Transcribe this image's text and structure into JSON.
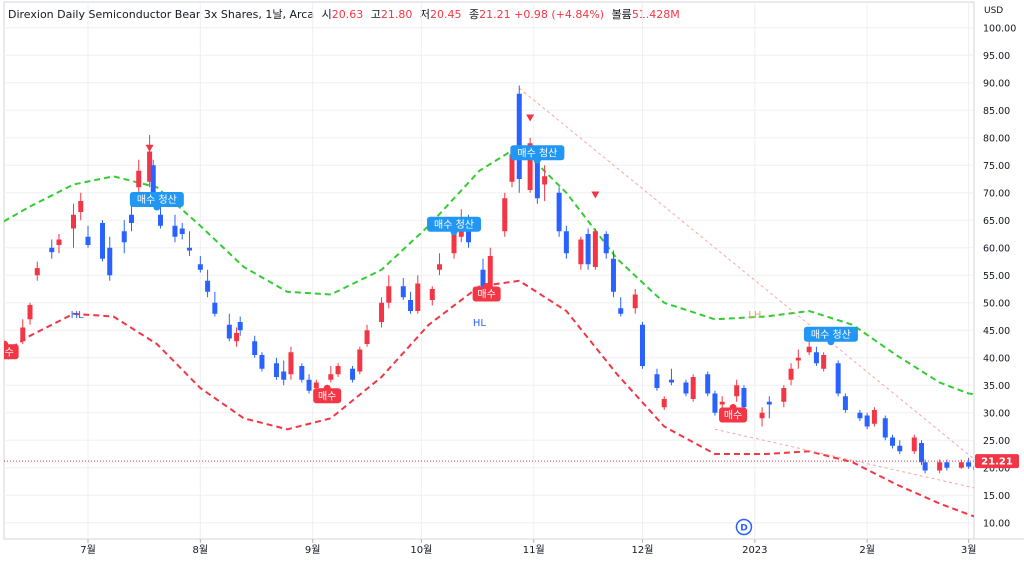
{
  "header": {
    "name": "Direxion Daily Semiconductor Bear 3x Shares",
    "interval": "1날",
    "exchange": "Arca",
    "open_label": "시",
    "open": "20.63",
    "high_label": "고",
    "high": "21.80",
    "low_label": "저",
    "low": "20.45",
    "close_label": "종",
    "close": "21.21",
    "change": "+0.98 (+4.84%)",
    "volume_label": "볼륨",
    "volume": "51.428M"
  },
  "currency": "USD",
  "colors": {
    "up": "#f23645",
    "down": "#2962ff",
    "upper_band": "#33cc33",
    "lower_band": "#f23645",
    "buy_label": "#f23645",
    "exit_label": "#2196f3",
    "trendline": "#f7a6a6",
    "grid": "#eef0f3"
  },
  "chart_data": {
    "type": "candlestick",
    "y_ticks": [
      "10.00",
      "15.00",
      "20.00",
      "25.00",
      "30.00",
      "35.00",
      "40.00",
      "45.00",
      "50.00",
      "55.00",
      "60.00",
      "65.00",
      "70.00",
      "75.00",
      "80.00",
      "85.00",
      "90.00",
      "95.00",
      "100.00"
    ],
    "ylim": [
      8.5,
      100.5
    ],
    "x_ticks": [
      "7월",
      "8월",
      "9월",
      "10월",
      "11월",
      "12월",
      "2023",
      "2월",
      "3월"
    ],
    "last_price": "21.21",
    "candles": [
      {
        "t": "2022-06-07",
        "o": 38.5,
        "h": 40.0,
        "l": 37.6,
        "c": 39.8
      },
      {
        "t": "2022-06-09",
        "o": 40.5,
        "h": 42.0,
        "l": 39.7,
        "c": 41.5
      },
      {
        "t": "2022-06-13",
        "o": 43.0,
        "h": 47.0,
        "l": 42.5,
        "c": 45.5
      },
      {
        "t": "2022-06-15",
        "o": 47.0,
        "h": 50.0,
        "l": 46.0,
        "c": 49.6
      },
      {
        "t": "2022-06-17",
        "o": 55.0,
        "h": 57.5,
        "l": 54.0,
        "c": 56.3
      },
      {
        "t": "2022-06-21",
        "o": 60.0,
        "h": 61.5,
        "l": 58.0,
        "c": 59.2
      },
      {
        "t": "2022-06-23",
        "o": 60.5,
        "h": 62.5,
        "l": 59.0,
        "c": 61.5
      },
      {
        "t": "2022-06-27",
        "o": 63.5,
        "h": 68.0,
        "l": 60.0,
        "c": 66.0
      },
      {
        "t": "2022-06-29",
        "o": 66.5,
        "h": 70.0,
        "l": 65.0,
        "c": 68.5
      },
      {
        "t": "2022-07-01",
        "o": 62.0,
        "h": 64.0,
        "l": 60.0,
        "c": 60.5
      },
      {
        "t": "2022-07-05",
        "o": 64.5,
        "h": 65.0,
        "l": 57.5,
        "c": 58.0
      },
      {
        "t": "2022-07-07",
        "o": 60.0,
        "h": 62.0,
        "l": 54.0,
        "c": 55.0
      },
      {
        "t": "2022-07-11",
        "o": 63.0,
        "h": 65.0,
        "l": 59.0,
        "c": 61.0
      },
      {
        "t": "2022-07-13",
        "o": 66.0,
        "h": 69.0,
        "l": 63.0,
        "c": 64.5
      },
      {
        "t": "2022-07-15",
        "o": 71.0,
        "h": 76.0,
        "l": 68.5,
        "c": 74.0
      },
      {
        "t": "2022-07-18",
        "o": 72.0,
        "h": 80.5,
        "l": 71.0,
        "c": 77.5
      },
      {
        "t": "2022-07-19",
        "o": 75.0,
        "h": 76.0,
        "l": 69.0,
        "c": 70.0
      },
      {
        "t": "2022-07-21",
        "o": 66.0,
        "h": 68.0,
        "l": 63.5,
        "c": 64.0
      },
      {
        "t": "2022-07-25",
        "o": 64.0,
        "h": 66.0,
        "l": 61.0,
        "c": 62.0
      },
      {
        "t": "2022-07-27",
        "o": 63.5,
        "h": 64.5,
        "l": 61.5,
        "c": 62.5
      },
      {
        "t": "2022-07-29",
        "o": 60.0,
        "h": 63.0,
        "l": 58.5,
        "c": 59.5
      },
      {
        "t": "2022-08-01",
        "o": 57.0,
        "h": 58.5,
        "l": 55.5,
        "c": 56.0
      },
      {
        "t": "2022-08-03",
        "o": 54.0,
        "h": 56.0,
        "l": 51.0,
        "c": 52.0
      },
      {
        "t": "2022-08-05",
        "o": 50.0,
        "h": 52.0,
        "l": 47.5,
        "c": 48.0
      },
      {
        "t": "2022-08-09",
        "o": 46.0,
        "h": 48.0,
        "l": 43.0,
        "c": 43.5
      },
      {
        "t": "2022-08-11",
        "o": 43.0,
        "h": 45.5,
        "l": 42.0,
        "c": 44.5
      },
      {
        "t": "2022-08-12",
        "o": 46.5,
        "h": 47.5,
        "l": 44.0,
        "c": 45.0
      },
      {
        "t": "2022-08-16",
        "o": 43.0,
        "h": 44.0,
        "l": 40.0,
        "c": 40.5
      },
      {
        "t": "2022-08-18",
        "o": 40.5,
        "h": 41.0,
        "l": 37.5,
        "c": 38.0
      },
      {
        "t": "2022-08-22",
        "o": 39.0,
        "h": 40.0,
        "l": 36.0,
        "c": 36.5
      },
      {
        "t": "2022-08-24",
        "o": 37.5,
        "h": 39.5,
        "l": 35.0,
        "c": 36.0
      },
      {
        "t": "2022-08-26",
        "o": 37.0,
        "h": 42.0,
        "l": 36.0,
        "c": 41.0
      },
      {
        "t": "2022-08-29",
        "o": 38.5,
        "h": 39.0,
        "l": 35.5,
        "c": 36.0
      },
      {
        "t": "2022-08-31",
        "o": 36.0,
        "h": 37.0,
        "l": 33.5,
        "c": 34.0
      },
      {
        "t": "2022-09-02",
        "o": 34.5,
        "h": 36.0,
        "l": 33.5,
        "c": 35.5
      },
      {
        "t": "2022-09-06",
        "o": 36.0,
        "h": 38.5,
        "l": 35.5,
        "c": 37.0
      },
      {
        "t": "2022-09-08",
        "o": 37.0,
        "h": 39.0,
        "l": 36.5,
        "c": 38.5
      },
      {
        "t": "2022-09-12",
        "o": 38.0,
        "h": 38.5,
        "l": 35.5,
        "c": 36.0
      },
      {
        "t": "2022-09-14",
        "o": 37.5,
        "h": 42.0,
        "l": 37.0,
        "c": 41.5
      },
      {
        "t": "2022-09-16",
        "o": 42.5,
        "h": 46.0,
        "l": 42.0,
        "c": 45.0
      },
      {
        "t": "2022-09-20",
        "o": 46.5,
        "h": 51.0,
        "l": 45.5,
        "c": 50.0
      },
      {
        "t": "2022-09-22",
        "o": 50.0,
        "h": 55.0,
        "l": 49.0,
        "c": 53.0
      },
      {
        "t": "2022-09-26",
        "o": 53.0,
        "h": 54.5,
        "l": 50.5,
        "c": 51.0
      },
      {
        "t": "2022-09-28",
        "o": 50.5,
        "h": 52.0,
        "l": 48.0,
        "c": 48.5
      },
      {
        "t": "2022-09-30",
        "o": 48.5,
        "h": 55.0,
        "l": 48.0,
        "c": 53.5
      },
      {
        "t": "2022-10-04",
        "o": 50.5,
        "h": 53.0,
        "l": 49.5,
        "c": 52.5
      },
      {
        "t": "2022-10-06",
        "o": 56.0,
        "h": 59.0,
        "l": 55.0,
        "c": 57.0
      },
      {
        "t": "2022-10-10",
        "o": 59.0,
        "h": 63.5,
        "l": 58.0,
        "c": 62.5
      },
      {
        "t": "2022-10-12",
        "o": 62.0,
        "h": 67.0,
        "l": 61.0,
        "c": 65.0
      },
      {
        "t": "2022-10-14",
        "o": 64.0,
        "h": 66.0,
        "l": 60.0,
        "c": 61.0
      },
      {
        "t": "2022-10-18",
        "o": 56.0,
        "h": 58.0,
        "l": 51.0,
        "c": 52.0
      },
      {
        "t": "2022-10-20",
        "o": 52.0,
        "h": 60.0,
        "l": 51.5,
        "c": 58.5
      },
      {
        "t": "2022-10-24",
        "o": 63.0,
        "h": 70.0,
        "l": 62.0,
        "c": 69.0
      },
      {
        "t": "2022-10-26",
        "o": 72.0,
        "h": 78.5,
        "l": 71.0,
        "c": 77.0
      },
      {
        "t": "2022-10-28",
        "o": 88.0,
        "h": 89.5,
        "l": 70.0,
        "c": 72.5
      },
      {
        "t": "2022-10-31",
        "o": 70.5,
        "h": 80.0,
        "l": 70.0,
        "c": 79.0
      },
      {
        "t": "2022-11-02",
        "o": 76.0,
        "h": 77.5,
        "l": 68.0,
        "c": 69.0
      },
      {
        "t": "2022-11-04",
        "o": 71.5,
        "h": 75.0,
        "l": 68.5,
        "c": 73.0
      },
      {
        "t": "2022-11-08",
        "o": 70.0,
        "h": 71.0,
        "l": 62.0,
        "c": 63.0
      },
      {
        "t": "2022-11-10",
        "o": 63.0,
        "h": 64.0,
        "l": 58.0,
        "c": 59.0
      },
      {
        "t": "2022-11-14",
        "o": 57.0,
        "h": 62.0,
        "l": 56.0,
        "c": 61.5
      },
      {
        "t": "2022-11-16",
        "o": 62.5,
        "h": 63.5,
        "l": 56.0,
        "c": 57.0
      },
      {
        "t": "2022-11-18",
        "o": 56.5,
        "h": 63.5,
        "l": 56.0,
        "c": 63.0
      },
      {
        "t": "2022-11-21",
        "o": 62.5,
        "h": 63.0,
        "l": 58.0,
        "c": 59.0
      },
      {
        "t": "2022-11-23",
        "o": 58.0,
        "h": 59.5,
        "l": 51.0,
        "c": 52.0
      },
      {
        "t": "2022-11-25",
        "o": 49.0,
        "h": 51.0,
        "l": 47.5,
        "c": 48.0
      },
      {
        "t": "2022-11-29",
        "o": 49.0,
        "h": 52.5,
        "l": 48.0,
        "c": 51.5
      },
      {
        "t": "2022-12-01",
        "o": 46.0,
        "h": 46.5,
        "l": 38.0,
        "c": 38.5
      },
      {
        "t": "2022-12-05",
        "o": 37.0,
        "h": 38.0,
        "l": 34.0,
        "c": 34.5
      },
      {
        "t": "2022-12-07",
        "o": 31.0,
        "h": 33.0,
        "l": 30.5,
        "c": 32.5
      },
      {
        "t": "2022-12-09",
        "o": 36.0,
        "h": 38.0,
        "l": 35.0,
        "c": 35.5
      },
      {
        "t": "2022-12-13",
        "o": 35.5,
        "h": 36.0,
        "l": 33.0,
        "c": 33.5
      },
      {
        "t": "2022-12-15",
        "o": 32.5,
        "h": 37.0,
        "l": 32.0,
        "c": 36.5
      },
      {
        "t": "2022-12-19",
        "o": 37.0,
        "h": 37.5,
        "l": 33.0,
        "c": 33.5
      },
      {
        "t": "2022-12-21",
        "o": 33.5,
        "h": 34.0,
        "l": 29.5,
        "c": 30.0
      },
      {
        "t": "2022-12-23",
        "o": 31.5,
        "h": 33.0,
        "l": 30.0,
        "c": 32.0
      },
      {
        "t": "2022-12-27",
        "o": 33.0,
        "h": 36.0,
        "l": 32.0,
        "c": 35.0
      },
      {
        "t": "2022-12-29",
        "o": 34.5,
        "h": 35.0,
        "l": 30.5,
        "c": 31.0
      },
      {
        "t": "2023-01-03",
        "o": 29.0,
        "h": 31.0,
        "l": 27.5,
        "c": 30.0
      },
      {
        "t": "2023-01-05",
        "o": 32.0,
        "h": 33.0,
        "l": 29.0,
        "c": 31.5
      },
      {
        "t": "2023-01-09",
        "o": 32.0,
        "h": 35.0,
        "l": 31.0,
        "c": 34.5
      },
      {
        "t": "2023-01-11",
        "o": 36.0,
        "h": 39.0,
        "l": 35.0,
        "c": 38.0
      },
      {
        "t": "2023-01-13",
        "o": 39.5,
        "h": 41.5,
        "l": 38.0,
        "c": 40.0
      },
      {
        "t": "2023-01-16",
        "o": 41.0,
        "h": 43.5,
        "l": 40.5,
        "c": 42.0
      },
      {
        "t": "2023-01-18",
        "o": 41.0,
        "h": 42.0,
        "l": 38.5,
        "c": 39.0
      },
      {
        "t": "2023-01-20",
        "o": 38.0,
        "h": 41.0,
        "l": 37.5,
        "c": 40.5
      },
      {
        "t": "2023-01-24",
        "o": 39.0,
        "h": 39.5,
        "l": 33.0,
        "c": 33.5
      },
      {
        "t": "2023-01-26",
        "o": 33.0,
        "h": 33.5,
        "l": 30.0,
        "c": 30.5
      },
      {
        "t": "2023-01-30",
        "o": 30.0,
        "h": 30.5,
        "l": 28.5,
        "c": 29.0
      },
      {
        "t": "2023-02-01",
        "o": 29.5,
        "h": 30.0,
        "l": 27.0,
        "c": 27.5
      },
      {
        "t": "2023-02-03",
        "o": 28.0,
        "h": 31.0,
        "l": 27.5,
        "c": 30.5
      },
      {
        "t": "2023-02-06",
        "o": 29.0,
        "h": 29.5,
        "l": 25.0,
        "c": 25.5
      },
      {
        "t": "2023-02-08",
        "o": 25.5,
        "h": 26.0,
        "l": 23.5,
        "c": 24.0
      },
      {
        "t": "2023-02-10",
        "o": 24.0,
        "h": 25.0,
        "l": 22.5,
        "c": 23.0
      },
      {
        "t": "2023-02-14",
        "o": 23.0,
        "h": 26.0,
        "l": 22.5,
        "c": 25.5
      },
      {
        "t": "2023-02-16",
        "o": 24.5,
        "h": 25.0,
        "l": 20.5,
        "c": 21.0
      },
      {
        "t": "2023-02-17",
        "o": 21.0,
        "h": 21.5,
        "l": 19.0,
        "c": 19.5
      },
      {
        "t": "2023-02-21",
        "o": 19.5,
        "h": 21.5,
        "l": 19.0,
        "c": 21.0
      },
      {
        "t": "2023-02-23",
        "o": 21.0,
        "h": 21.5,
        "l": 19.5,
        "c": 20.0
      },
      {
        "t": "2023-02-27",
        "o": 20.0,
        "h": 21.5,
        "l": 19.8,
        "c": 21.0
      },
      {
        "t": "2023-03-01",
        "o": 21.0,
        "h": 21.8,
        "l": 19.8,
        "c": 20.2
      },
      {
        "t": "2023-03-03",
        "o": 20.2,
        "h": 21.0,
        "l": 19.3,
        "c": 19.6
      },
      {
        "t": "2023-03-06",
        "o": 20.63,
        "h": 21.8,
        "l": 20.45,
        "c": 21.21
      }
    ],
    "upper_band": [
      [
        "2022-06-03",
        63.0
      ],
      [
        "2022-06-15",
        67.5
      ],
      [
        "2022-06-27",
        71.5
      ],
      [
        "2022-07-08",
        73.0
      ],
      [
        "2022-07-20",
        71.0
      ],
      [
        "2022-08-01",
        64.0
      ],
      [
        "2022-08-13",
        56.5
      ],
      [
        "2022-08-25",
        52.0
      ],
      [
        "2022-09-06",
        51.5
      ],
      [
        "2022-09-20",
        56.0
      ],
      [
        "2022-10-03",
        64.0
      ],
      [
        "2022-10-17",
        74.0
      ],
      [
        "2022-10-28",
        78.5
      ],
      [
        "2022-11-10",
        70.0
      ],
      [
        "2022-11-24",
        58.0
      ],
      [
        "2022-12-07",
        50.0
      ],
      [
        "2022-12-21",
        47.0
      ],
      [
        "2023-01-04",
        47.5
      ],
      [
        "2023-01-16",
        48.5
      ],
      [
        "2023-01-28",
        46.0
      ],
      [
        "2023-02-09",
        40.5
      ],
      [
        "2023-02-21",
        35.5
      ],
      [
        "2023-03-01",
        33.5
      ],
      [
        "2023-03-08",
        33.0
      ]
    ],
    "lower_band": [
      [
        "2022-06-03",
        39.0
      ],
      [
        "2022-06-15",
        44.0
      ],
      [
        "2022-06-27",
        48.0
      ],
      [
        "2022-07-08",
        47.5
      ],
      [
        "2022-07-20",
        42.5
      ],
      [
        "2022-08-01",
        34.5
      ],
      [
        "2022-08-13",
        29.0
      ],
      [
        "2022-08-25",
        27.0
      ],
      [
        "2022-09-06",
        29.0
      ],
      [
        "2022-09-20",
        36.5
      ],
      [
        "2022-10-03",
        46.0
      ],
      [
        "2022-10-17",
        53.0
      ],
      [
        "2022-10-28",
        54.0
      ],
      [
        "2022-11-10",
        48.5
      ],
      [
        "2022-11-24",
        37.0
      ],
      [
        "2022-12-07",
        27.5
      ],
      [
        "2022-12-21",
        22.5
      ],
      [
        "2023-01-04",
        22.5
      ],
      [
        "2023-01-16",
        23.0
      ],
      [
        "2023-01-28",
        21.0
      ],
      [
        "2023-02-09",
        17.0
      ],
      [
        "2023-02-21",
        13.5
      ],
      [
        "2023-03-01",
        11.5
      ],
      [
        "2023-03-08",
        10.0
      ]
    ],
    "trendlines": [
      {
        "from": [
          "2022-10-28",
          89.0
        ],
        "to": [
          "2023-03-25",
          9.5
        ],
        "style": "dotted"
      },
      {
        "from": [
          "2022-12-21",
          27.0
        ],
        "to": [
          "2023-03-25",
          13.0
        ],
        "style": "dotted"
      }
    ],
    "signals": [
      {
        "t": "2022-06-08",
        "price": 43.0,
        "text": "매수",
        "kind": "buy"
      },
      {
        "t": "2022-07-20",
        "price": 66.5,
        "text": "매수 청산",
        "kind": "exit"
      },
      {
        "t": "2022-09-05",
        "price": 35.0,
        "text": "매수",
        "kind": "buy"
      },
      {
        "t": "2022-10-10",
        "price": 62.0,
        "text": "매수 청산",
        "kind": "exit"
      },
      {
        "t": "2022-10-19",
        "price": 53.5,
        "text": "매수",
        "kind": "buy"
      },
      {
        "t": "2022-11-02",
        "price": 75.0,
        "text": "매수 청산",
        "kind": "exit"
      },
      {
        "t": "2022-12-26",
        "price": 31.5,
        "text": "매수",
        "kind": "buy"
      },
      {
        "t": "2023-01-22",
        "price": 42.0,
        "text": "매수 청산",
        "kind": "exit"
      }
    ],
    "pivots": [
      {
        "t": "2022-06-28",
        "price": 48.0,
        "text": "HL"
      },
      {
        "t": "2022-10-17",
        "price": 46.5,
        "text": "HL"
      },
      {
        "t": "2023-01-01",
        "price": 48.0,
        "text": "LH"
      }
    ],
    "down_arrows": [
      {
        "t": "2022-07-18",
        "price": 78.0
      },
      {
        "t": "2022-10-31",
        "price": 83.5
      },
      {
        "t": "2022-11-18",
        "price": 69.5
      }
    ],
    "event_badge": {
      "t": "2022-12-29",
      "text": "D"
    }
  }
}
